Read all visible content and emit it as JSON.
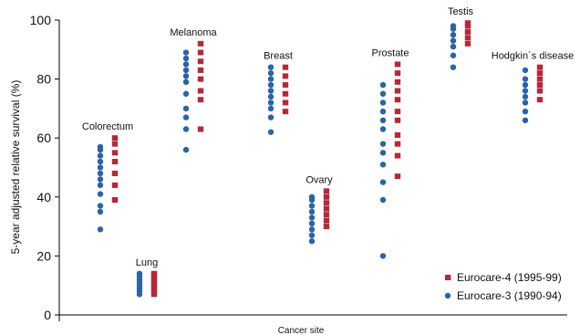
{
  "chart_data": {
    "type": "scatter",
    "title": "",
    "xlabel": "Cancer site",
    "ylabel": "5-year adjusted relative survival (%)",
    "ylim": [
      0,
      100
    ],
    "yticks": [
      0,
      20,
      40,
      60,
      80,
      100
    ],
    "grid": false,
    "legend_position": "bottom-right",
    "categories": [
      "Colorectum",
      "Lung",
      "Melanoma",
      "Breast",
      "Ovary",
      "Prostate",
      "Testis",
      "Hodgkin´s disease"
    ],
    "series": [
      {
        "name": "Eurocare-3 (1990-94)",
        "color": "#2a63a8",
        "values": [
          [
            29,
            35,
            37,
            41,
            44,
            46,
            48,
            50,
            52,
            54,
            56,
            57
          ],
          [
            7,
            8,
            9,
            10,
            11,
            12,
            13,
            14
          ],
          [
            56,
            63,
            67,
            70,
            75,
            79,
            81,
            83,
            85,
            87,
            89
          ],
          [
            62,
            67,
            70,
            72,
            74,
            76,
            78,
            80,
            82,
            84
          ],
          [
            25,
            27,
            29,
            31,
            33,
            35,
            37,
            39,
            40
          ],
          [
            20,
            39,
            45,
            51,
            55,
            58,
            63,
            66,
            69,
            72,
            75,
            78
          ],
          [
            84,
            88,
            91,
            93,
            95,
            97,
            98
          ],
          [
            66,
            69,
            72,
            74,
            76,
            78,
            80,
            83
          ]
        ]
      },
      {
        "name": "Eurocare-4 (1995-99)",
        "color": "#b5283a",
        "values": [
          [
            39,
            44,
            48,
            52,
            55,
            58,
            60
          ],
          [
            7,
            8,
            9,
            10,
            11,
            12,
            13,
            14
          ],
          [
            63,
            73,
            76,
            80,
            83,
            86,
            89,
            92
          ],
          [
            69,
            72,
            75,
            78,
            81,
            84
          ],
          [
            30,
            32,
            34,
            36,
            38,
            40,
            42
          ],
          [
            47,
            54,
            58,
            61,
            66,
            69,
            73,
            76,
            79,
            82,
            85
          ],
          [
            92,
            94,
            96,
            98,
            99
          ],
          [
            73,
            76,
            78,
            80,
            82,
            84
          ]
        ]
      }
    ]
  }
}
